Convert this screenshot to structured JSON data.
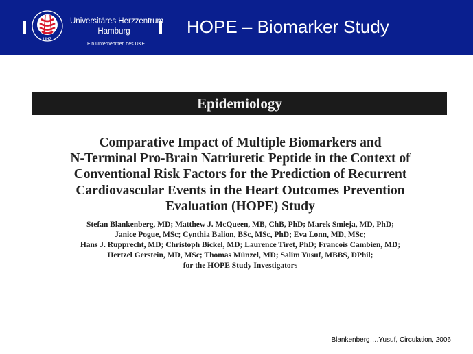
{
  "header": {
    "background_color": "#0a1f8f",
    "logo": {
      "seal_icon": "uhz-seal-icon",
      "seal_text": "UNIVERSITÄRES HERZZENTRUM UHZ",
      "name_lines": [
        "Universitäres Herzzentrum",
        "Hamburg"
      ],
      "subtitle": "Ein Unternehmen des UKE"
    },
    "title": "HOPE – Biomarker Study"
  },
  "paper": {
    "section_heading": "Epidemiology",
    "title_lines": [
      "Comparative Impact of Multiple Biomarkers and",
      "N-Terminal Pro-Brain Natriuretic Peptide in the Context of",
      "Conventional Risk Factors for the Prediction of Recurrent",
      "Cardiovascular Events in the Heart Outcomes Prevention",
      "Evaluation (HOPE) Study"
    ],
    "author_lines": [
      "Stefan Blankenberg, MD; Matthew J. McQueen, MB, ChB, PhD; Marek Smieja, MD, PhD;",
      "Janice Pogue, MSc; Cynthia Balion, BSc, MSc, PhD; Eva Lonn, MD, MSc;",
      "Hans J. Rupprecht, MD; Christoph Bickel, MD; Laurence Tiret, PhD; Francois Cambien, MD;",
      "Hertzel Gerstein, MD, MSc; Thomas Münzel, MD; Salim Yusuf, MBBS, DPhil;",
      "for the HOPE Study Investigators"
    ]
  },
  "citation": "Blankenberg….Yusuf, Circulation, 2006"
}
